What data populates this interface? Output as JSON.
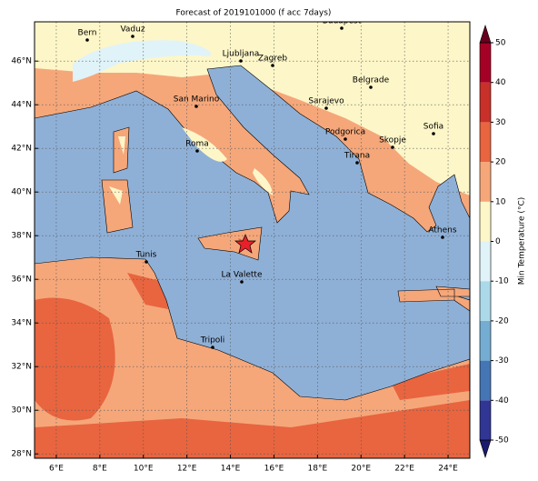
{
  "title": "Forecast of 2019101000 (f acc 7days)",
  "map": {
    "xlim": [
      5,
      25
    ],
    "ylim": [
      27.8,
      47.8
    ],
    "xticks": [
      {
        "value": 6,
        "label": "6°E"
      },
      {
        "value": 8,
        "label": "8°E"
      },
      {
        "value": 10,
        "label": "10°E"
      },
      {
        "value": 12,
        "label": "12°E"
      },
      {
        "value": 14,
        "label": "14°E"
      },
      {
        "value": 16,
        "label": "16°E"
      },
      {
        "value": 18,
        "label": "18°E"
      },
      {
        "value": 20,
        "label": "20°E"
      },
      {
        "value": 22,
        "label": "22°E"
      },
      {
        "value": 24,
        "label": "24°E"
      }
    ],
    "yticks": [
      {
        "value": 28,
        "label": "28°N"
      },
      {
        "value": 30,
        "label": "30°N"
      },
      {
        "value": 32,
        "label": "32°N"
      },
      {
        "value": 34,
        "label": "34°N"
      },
      {
        "value": 36,
        "label": "36°N"
      },
      {
        "value": 38,
        "label": "38°N"
      },
      {
        "value": 40,
        "label": "40°N"
      },
      {
        "value": 42,
        "label": "42°N"
      },
      {
        "value": 44,
        "label": "44°N"
      },
      {
        "value": 46,
        "label": "46°N"
      }
    ],
    "grid": true
  },
  "cities": [
    "Bern",
    "Vaduz",
    "Budapest",
    "Ljubljana",
    "Zagreb",
    "Belgrade",
    "San Marino",
    "Sarajevo",
    "Sofia",
    "Podgorica",
    "Skopje",
    "Roma",
    "Tirana",
    "Athens",
    "Tunis",
    "La Valette",
    "Tripoli"
  ],
  "colorbar": {
    "label": "Min Temperature (°C)",
    "ticks": [
      -50,
      -40,
      -30,
      -20,
      -10,
      0,
      10,
      20,
      30,
      40,
      50
    ],
    "colors": [
      "#313695",
      "#4575b4",
      "#74add1",
      "#abd9e9",
      "#e0f3f8",
      "#fdf6c8",
      "#f5a77a",
      "#e8653f",
      "#c8302a",
      "#a50026"
    ]
  }
}
